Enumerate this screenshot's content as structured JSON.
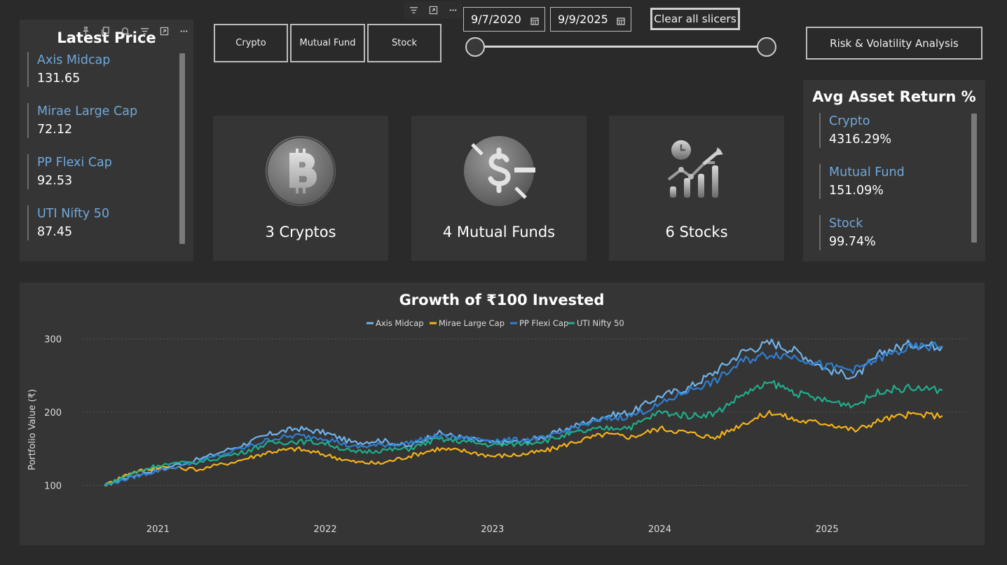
{
  "latest_price": {
    "title": "Latest Price",
    "items": [
      {
        "name": "Axis Midcap",
        "value": "131.65"
      },
      {
        "name": "Mirae Large Cap",
        "value": "72.12"
      },
      {
        "name": "PP Flexi Cap",
        "value": "92.53"
      },
      {
        "name": "UTI Nifty 50",
        "value": "87.45"
      }
    ]
  },
  "slicer": {
    "buttons": [
      "Crypto",
      "Mutual Fund",
      "Stock"
    ],
    "start_date": "9/7/2020",
    "end_date": "9/9/2025",
    "clear_label": "Clear all slicers"
  },
  "nav": {
    "risk_label": "Risk & Volatility Analysis"
  },
  "kpis": [
    {
      "label": "3 Cryptos",
      "icon": "bitcoin-icon"
    },
    {
      "label": "4 Mutual Funds",
      "icon": "dollar-coin-icon"
    },
    {
      "label": "6 Stocks",
      "icon": "stock-growth-icon"
    }
  ],
  "avg_return": {
    "title": "Avg Asset Return %",
    "items": [
      {
        "name": "Crypto",
        "value": "4316.29%"
      },
      {
        "name": "Mutual Fund",
        "value": "151.09%"
      },
      {
        "name": "Stock",
        "value": "99.74%"
      }
    ]
  },
  "colors": {
    "axis_midcap": "#6fb3ea",
    "mirae": "#f5b219",
    "pp_flexi": "#2f7fd1",
    "uti": "#1eaf8c",
    "link": "#6fa8dc"
  },
  "chart_data": {
    "type": "line",
    "title": "Growth of ₹100 Invested",
    "xlabel": "",
    "ylabel": "Portfolio Value (₹)",
    "ylim": [
      90,
      310
    ],
    "yticks": [
      "100",
      "200",
      "300"
    ],
    "xticks": [
      "2021",
      "2022",
      "2023",
      "2024",
      "2025"
    ],
    "x": [
      2020.68,
      2020.83,
      2021.0,
      2021.25,
      2021.5,
      2021.67,
      2021.83,
      2022.0,
      2022.17,
      2022.33,
      2022.5,
      2022.67,
      2022.83,
      2023.0,
      2023.17,
      2023.33,
      2023.5,
      2023.67,
      2023.83,
      2024.0,
      2024.17,
      2024.33,
      2024.5,
      2024.67,
      2024.83,
      2025.0,
      2025.17,
      2025.33,
      2025.5,
      2025.69
    ],
    "series": [
      {
        "name": "Axis Midcap",
        "values": [
          100,
          112,
          122,
          136,
          155,
          170,
          178,
          172,
          158,
          162,
          153,
          172,
          165,
          158,
          160,
          168,
          182,
          195,
          200,
          222,
          233,
          255,
          283,
          295,
          282,
          258,
          248,
          282,
          293,
          290
        ]
      },
      {
        "name": "Mirae Large Cap",
        "values": [
          100,
          117,
          125,
          122,
          135,
          146,
          150,
          142,
          132,
          130,
          140,
          150,
          147,
          140,
          142,
          148,
          160,
          170,
          166,
          178,
          172,
          165,
          185,
          200,
          188,
          185,
          175,
          190,
          197,
          195
        ]
      },
      {
        "name": "PP Flexi Cap",
        "values": [
          100,
          110,
          120,
          133,
          150,
          163,
          168,
          165,
          152,
          155,
          158,
          168,
          164,
          162,
          162,
          165,
          180,
          190,
          195,
          210,
          230,
          242,
          270,
          280,
          275,
          262,
          258,
          275,
          288,
          290
        ]
      },
      {
        "name": "UTI Nifty 50",
        "values": [
          100,
          115,
          128,
          132,
          145,
          158,
          160,
          158,
          145,
          148,
          150,
          163,
          160,
          155,
          157,
          162,
          172,
          178,
          180,
          200,
          195,
          198,
          225,
          240,
          225,
          215,
          210,
          230,
          233,
          230
        ]
      }
    ]
  }
}
